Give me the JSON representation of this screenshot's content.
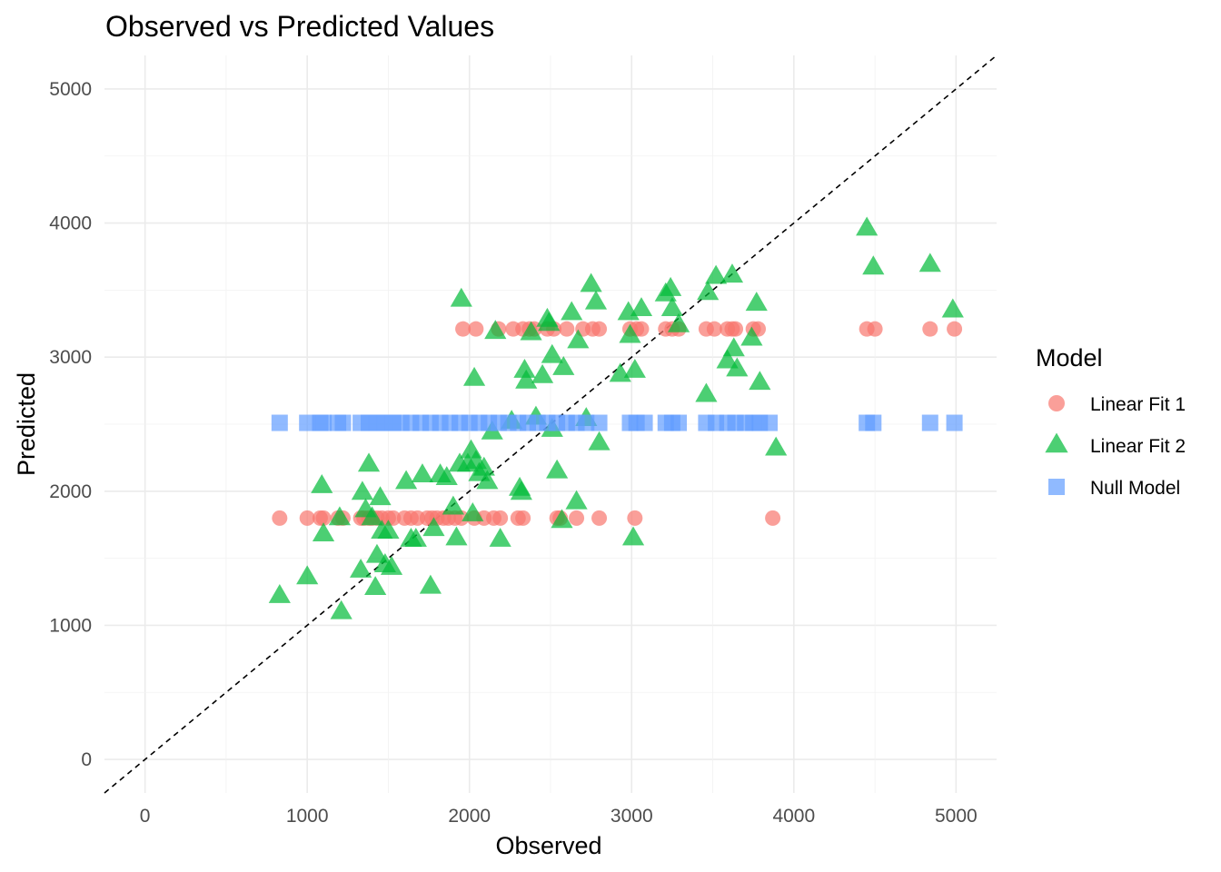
{
  "chart_data": {
    "type": "scatter",
    "title": "Observed vs Predicted Values",
    "xlabel": "Observed",
    "ylabel": "Predicted",
    "xlim": [
      -250,
      5250
    ],
    "ylim": [
      -250,
      5250
    ],
    "x_ticks": [
      0,
      1000,
      2000,
      3000,
      4000,
      5000
    ],
    "y_ticks": [
      0,
      1000,
      2000,
      3000,
      4000,
      5000
    ],
    "grid": true,
    "reference_line": "y = x (dashed)",
    "legend": {
      "title": "Model",
      "placement": "right"
    },
    "series": [
      {
        "name": "Linear Fit 1",
        "marker": "circle",
        "color": "#F8766D",
        "points": [
          [
            830,
            1800
          ],
          [
            1000,
            1800
          ],
          [
            1080,
            1800
          ],
          [
            1100,
            1800
          ],
          [
            1190,
            1800
          ],
          [
            1220,
            1800
          ],
          [
            1330,
            1800
          ],
          [
            1350,
            1800
          ],
          [
            1380,
            1800
          ],
          [
            1400,
            1800
          ],
          [
            1430,
            1800
          ],
          [
            1460,
            1800
          ],
          [
            1500,
            1800
          ],
          [
            1530,
            1800
          ],
          [
            1600,
            1800
          ],
          [
            1640,
            1800
          ],
          [
            1680,
            1800
          ],
          [
            1740,
            1800
          ],
          [
            1770,
            1800
          ],
          [
            1800,
            1800
          ],
          [
            1840,
            1800
          ],
          [
            1870,
            1800
          ],
          [
            1910,
            1800
          ],
          [
            1950,
            1800
          ],
          [
            2030,
            1800
          ],
          [
            2090,
            1800
          ],
          [
            2150,
            1800
          ],
          [
            2190,
            1800
          ],
          [
            2300,
            1800
          ],
          [
            2330,
            1800
          ],
          [
            2540,
            1800
          ],
          [
            2560,
            1800
          ],
          [
            2660,
            1800
          ],
          [
            2800,
            1800
          ],
          [
            3020,
            1800
          ],
          [
            3870,
            1800
          ],
          [
            1960,
            3210
          ],
          [
            2040,
            3210
          ],
          [
            2180,
            3210
          ],
          [
            2270,
            3210
          ],
          [
            2330,
            3210
          ],
          [
            2370,
            3210
          ],
          [
            2400,
            3210
          ],
          [
            2480,
            3210
          ],
          [
            2520,
            3210
          ],
          [
            2600,
            3210
          ],
          [
            2700,
            3210
          ],
          [
            2760,
            3210
          ],
          [
            2800,
            3210
          ],
          [
            2990,
            3210
          ],
          [
            3030,
            3210
          ],
          [
            3060,
            3210
          ],
          [
            3210,
            3210
          ],
          [
            3250,
            3210
          ],
          [
            3290,
            3210
          ],
          [
            3460,
            3210
          ],
          [
            3510,
            3210
          ],
          [
            3590,
            3210
          ],
          [
            3620,
            3210
          ],
          [
            3640,
            3210
          ],
          [
            3750,
            3210
          ],
          [
            3780,
            3210
          ],
          [
            4450,
            3210
          ],
          [
            4500,
            3210
          ],
          [
            4840,
            3210
          ],
          [
            4990,
            3210
          ]
        ]
      },
      {
        "name": "Linear Fit 2",
        "marker": "triangle",
        "color": "#00BA38",
        "points": [
          [
            830,
            1220
          ],
          [
            1000,
            1360
          ],
          [
            1090,
            2040
          ],
          [
            1100,
            1680
          ],
          [
            1200,
            1800
          ],
          [
            1210,
            1100
          ],
          [
            1330,
            1410
          ],
          [
            1340,
            1990
          ],
          [
            1360,
            1860
          ],
          [
            1380,
            2200
          ],
          [
            1400,
            1800
          ],
          [
            1420,
            1280
          ],
          [
            1430,
            1520
          ],
          [
            1450,
            1950
          ],
          [
            1460,
            1700
          ],
          [
            1480,
            1450
          ],
          [
            1500,
            1700
          ],
          [
            1520,
            1430
          ],
          [
            1610,
            2070
          ],
          [
            1640,
            1640
          ],
          [
            1670,
            1640
          ],
          [
            1710,
            2120
          ],
          [
            1760,
            1290
          ],
          [
            1780,
            1720
          ],
          [
            1820,
            2120
          ],
          [
            1860,
            2100
          ],
          [
            1900,
            1880
          ],
          [
            1920,
            1650
          ],
          [
            1940,
            2200
          ],
          [
            1950,
            3430
          ],
          [
            1990,
            2200
          ],
          [
            2010,
            2300
          ],
          [
            2020,
            1830
          ],
          [
            2030,
            2840
          ],
          [
            2040,
            2220
          ],
          [
            2060,
            2130
          ],
          [
            2090,
            2170
          ],
          [
            2110,
            2070
          ],
          [
            2140,
            2440
          ],
          [
            2160,
            3190
          ],
          [
            2190,
            1640
          ],
          [
            2260,
            2520
          ],
          [
            2310,
            2020
          ],
          [
            2320,
            1990
          ],
          [
            2340,
            2900
          ],
          [
            2350,
            2820
          ],
          [
            2380,
            3180
          ],
          [
            2410,
            2550
          ],
          [
            2450,
            2860
          ],
          [
            2480,
            3280
          ],
          [
            2490,
            3250
          ],
          [
            2510,
            3010
          ],
          [
            2510,
            2460
          ],
          [
            2540,
            2150
          ],
          [
            2570,
            1780
          ],
          [
            2580,
            2920
          ],
          [
            2630,
            3330
          ],
          [
            2660,
            1920
          ],
          [
            2670,
            3120
          ],
          [
            2720,
            2540
          ],
          [
            2750,
            3540
          ],
          [
            2780,
            3410
          ],
          [
            2800,
            2360
          ],
          [
            2930,
            2870
          ],
          [
            2980,
            3330
          ],
          [
            2990,
            3160
          ],
          [
            3010,
            1650
          ],
          [
            3020,
            2900
          ],
          [
            3060,
            3360
          ],
          [
            3210,
            3470
          ],
          [
            3240,
            3510
          ],
          [
            3250,
            3360
          ],
          [
            3290,
            3240
          ],
          [
            3460,
            2720
          ],
          [
            3470,
            3480
          ],
          [
            3520,
            3600
          ],
          [
            3590,
            2970
          ],
          [
            3620,
            3610
          ],
          [
            3630,
            3060
          ],
          [
            3650,
            2910
          ],
          [
            3740,
            3140
          ],
          [
            3770,
            3400
          ],
          [
            3790,
            2810
          ],
          [
            3890,
            2320
          ],
          [
            4450,
            3960
          ],
          [
            4490,
            3670
          ],
          [
            4840,
            3690
          ],
          [
            4980,
            3350
          ]
        ]
      },
      {
        "name": "Null Model",
        "marker": "square",
        "color": "#619CFF",
        "points": [
          [
            830,
            2510
          ],
          [
            1000,
            2510
          ],
          [
            1080,
            2510
          ],
          [
            1100,
            2510
          ],
          [
            1190,
            2510
          ],
          [
            1220,
            2510
          ],
          [
            1330,
            2510
          ],
          [
            1380,
            2510
          ],
          [
            1430,
            2510
          ],
          [
            1480,
            2510
          ],
          [
            1530,
            2510
          ],
          [
            1580,
            2510
          ],
          [
            1640,
            2510
          ],
          [
            1700,
            2510
          ],
          [
            1760,
            2510
          ],
          [
            1820,
            2510
          ],
          [
            1880,
            2510
          ],
          [
            1940,
            2510
          ],
          [
            2000,
            2510
          ],
          [
            2060,
            2510
          ],
          [
            2120,
            2510
          ],
          [
            2180,
            2510
          ],
          [
            2240,
            2510
          ],
          [
            2300,
            2510
          ],
          [
            2360,
            2510
          ],
          [
            2420,
            2510
          ],
          [
            2480,
            2510
          ],
          [
            2540,
            2510
          ],
          [
            2600,
            2510
          ],
          [
            2660,
            2510
          ],
          [
            2720,
            2510
          ],
          [
            2800,
            2510
          ],
          [
            2990,
            2510
          ],
          [
            3030,
            2510
          ],
          [
            3080,
            2510
          ],
          [
            3210,
            2510
          ],
          [
            3250,
            2510
          ],
          [
            3290,
            2510
          ],
          [
            3460,
            2510
          ],
          [
            3520,
            2510
          ],
          [
            3590,
            2510
          ],
          [
            3640,
            2510
          ],
          [
            3700,
            2510
          ],
          [
            3750,
            2510
          ],
          [
            3790,
            2510
          ],
          [
            3850,
            2510
          ],
          [
            4450,
            2510
          ],
          [
            4490,
            2510
          ],
          [
            4840,
            2510
          ],
          [
            4990,
            2510
          ]
        ]
      }
    ]
  }
}
